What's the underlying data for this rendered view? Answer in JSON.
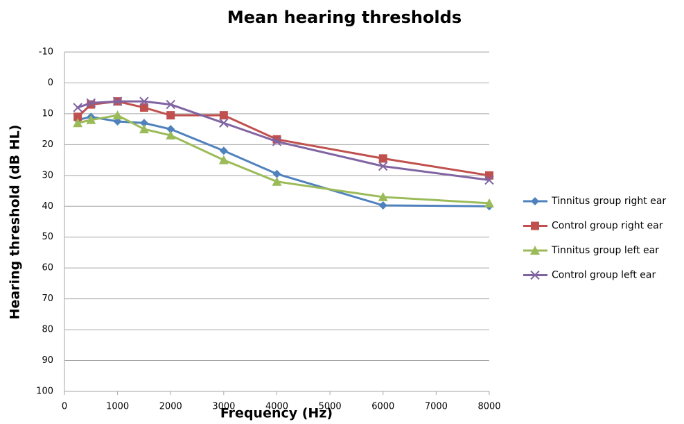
{
  "chart_data": {
    "type": "line",
    "title": "Mean hearing thresholds",
    "xlabel": "Frequency (Hz)",
    "ylabel": "Hearing threshold (dB HL)",
    "x": [
      250,
      500,
      1000,
      1500,
      2000,
      3000,
      4000,
      6000,
      8000
    ],
    "series": [
      {
        "name": "Tinnitus group right ear",
        "color": "#4f81bd",
        "marker": "diamond",
        "values": [
          12,
          11,
          12.5,
          13,
          15,
          22,
          29.5,
          39.7,
          40
        ]
      },
      {
        "name": "Control group right ear",
        "color": "#c0504d",
        "marker": "square",
        "values": [
          11,
          7,
          6,
          8,
          10.5,
          10.5,
          18.3,
          24.5,
          30
        ]
      },
      {
        "name": "Tinnitus group left ear",
        "color": "#9bbb59",
        "marker": "triangle",
        "values": [
          13,
          12,
          10.5,
          15,
          17,
          25,
          32,
          37,
          39
        ]
      },
      {
        "name": "Control group left ear",
        "color": "#8064a2",
        "marker": "x",
        "values": [
          8,
          6.5,
          6,
          6,
          7,
          13,
          19,
          27,
          31.5
        ]
      }
    ],
    "xlim": [
      0,
      8000
    ],
    "xticks": [
      0,
      1000,
      2000,
      3000,
      4000,
      5000,
      6000,
      7000,
      8000
    ],
    "ylim": [
      -10,
      100
    ],
    "yticks": [
      -10,
      0,
      10,
      20,
      30,
      40,
      50,
      60,
      70,
      80,
      90,
      100
    ],
    "y_inverted": true,
    "grid": true,
    "legend": "right"
  }
}
